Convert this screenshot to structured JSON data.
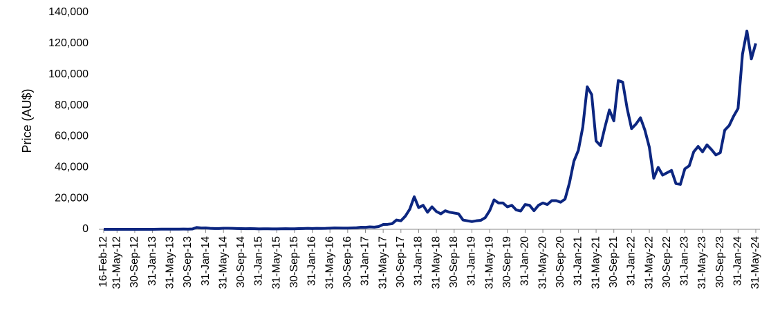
{
  "chart_data": {
    "type": "line",
    "y_label": "Price (AU$)",
    "color": "#0c2680",
    "categories": [
      "16-Feb-12",
      null,
      null,
      "31-May-12",
      null,
      null,
      null,
      "30-Sep-12",
      null,
      null,
      null,
      "31-Jan-13",
      null,
      null,
      null,
      "31-May-13",
      null,
      null,
      null,
      "30-Sep-13",
      null,
      null,
      null,
      "31-Jan-14",
      null,
      null,
      null,
      "31-May-14",
      null,
      null,
      null,
      "30-Sep-14",
      null,
      null,
      null,
      "31-Jan-15",
      null,
      null,
      null,
      "31-May-15",
      null,
      null,
      null,
      "30-Sep-15",
      null,
      null,
      null,
      "31-Jan-16",
      null,
      null,
      null,
      "31-May-16",
      null,
      null,
      null,
      "30-Sep-16",
      null,
      null,
      null,
      "31-Jan-17",
      null,
      null,
      null,
      "31-May-17",
      null,
      null,
      null,
      "30-Sep-17",
      null,
      null,
      null,
      "31-Jan-18",
      null,
      null,
      null,
      "31-May-18",
      null,
      null,
      null,
      "30-Sep-18",
      null,
      null,
      null,
      "31-Jan-19",
      null,
      null,
      null,
      "31-May-19",
      null,
      null,
      null,
      "30-Sep-19",
      null,
      null,
      null,
      "31-Jan-20",
      null,
      null,
      null,
      "31-May-20",
      null,
      null,
      null,
      "30-Sep-20",
      null,
      null,
      null,
      "31-Jan-21",
      null,
      null,
      null,
      "31-May-21",
      null,
      null,
      null,
      "30-Sep-21",
      null,
      null,
      null,
      "31-Jan-22",
      null,
      null,
      null,
      "31-May-22",
      null,
      null,
      null,
      "30-Sep-22",
      null,
      null,
      null,
      "31-Jan-23",
      null,
      null,
      null,
      "31-May-23",
      null,
      null,
      null,
      "30-Sep-23",
      null,
      null,
      null,
      "31-Jan-24",
      null,
      null,
      null,
      "31-May-24"
    ],
    "values": [
      5,
      5,
      5,
      5,
      6,
      9,
      10,
      12,
      11,
      12,
      13,
      20,
      33,
      90,
      135,
      125,
      105,
      105,
      150,
      140,
      215,
      1200,
      820,
      900,
      620,
      520,
      490,
      680,
      680,
      620,
      520,
      440,
      390,
      440,
      390,
      280,
      320,
      320,
      300,
      290,
      340,
      390,
      320,
      330,
      440,
      520,
      590,
      520,
      610,
      540,
      590,
      740,
      900,
      830,
      760,
      800,
      920,
      1000,
      1330,
      1270,
      1550,
      1400,
      1800,
      3100,
      3200,
      3600,
      6000,
      5500,
      8500,
      13000,
      21000,
      14000,
      15500,
      11000,
      14500,
      11500,
      10000,
      12000,
      11000,
      10500,
      10000,
      6000,
      5500,
      5000,
      5500,
      5800,
      7500,
      12000,
      19000,
      17000,
      17000,
      14500,
      15500,
      12500,
      11800,
      16000,
      15500,
      12000,
      15500,
      17000,
      16000,
      18500,
      18500,
      17500,
      19500,
      30000,
      44000,
      51000,
      66000,
      92000,
      87000,
      57000,
      54000,
      66000,
      77000,
      70000,
      96000,
      95000,
      78000,
      65000,
      68000,
      72000,
      64000,
      53000,
      33000,
      40000,
      35000,
      36500,
      38000,
      29500,
      29000,
      39000,
      41000,
      50000,
      53500,
      50000,
      54500,
      51500,
      48000,
      49500,
      64000,
      67000,
      73000,
      78000,
      113000,
      128000,
      110000,
      120000
    ],
    "ylim": [
      0,
      140000
    ],
    "yticks": [
      0,
      {
        "value": 20000,
        "label": "20,000"
      },
      {
        "value": 40000,
        "label": "40,000"
      },
      {
        "value": 60000,
        "label": "60,000"
      },
      {
        "value": 80000,
        "label": "80,000"
      },
      {
        "value": 100000,
        "label": "100,000"
      },
      {
        "value": 120000,
        "label": "120,000"
      },
      {
        "value": 140000,
        "label": "140,000"
      }
    ],
    "grid": false
  }
}
